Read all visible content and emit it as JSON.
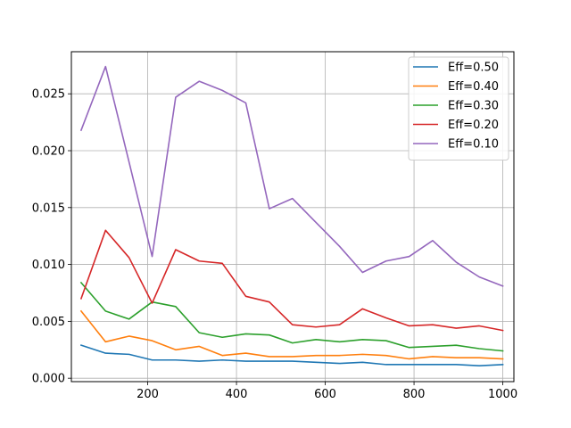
{
  "chart_data": {
    "type": "line",
    "title": "",
    "xlabel": "",
    "ylabel": "",
    "xlim": [
      28,
      1025
    ],
    "ylim": [
      -0.0003,
      0.0287
    ],
    "x_ticks": [
      200,
      400,
      600,
      800,
      1000
    ],
    "y_ticks": [
      0.0,
      0.005,
      0.01,
      0.015,
      0.02,
      0.025
    ],
    "x_tick_labels": [
      "200",
      "400",
      "600",
      "800",
      "1000"
    ],
    "y_tick_labels": [
      "0.000",
      "0.005",
      "0.010",
      "0.015",
      "0.020",
      "0.025"
    ],
    "grid": true,
    "legend_position": "top-right",
    "x": [
      50,
      105,
      158,
      210,
      263,
      316,
      368,
      421,
      474,
      526,
      579,
      632,
      684,
      737,
      789,
      842,
      895,
      947,
      1000
    ],
    "series": [
      {
        "name": "Eff=0.50",
        "color": "#1f77b4",
        "values": [
          0.0029,
          0.0022,
          0.0021,
          0.0016,
          0.0016,
          0.0015,
          0.0016,
          0.0015,
          0.0015,
          0.0015,
          0.0014,
          0.0013,
          0.0014,
          0.0012,
          0.0012,
          0.0012,
          0.0012,
          0.0011,
          0.0012
        ]
      },
      {
        "name": "Eff=0.40",
        "color": "#ff7f0e",
        "values": [
          0.0059,
          0.0032,
          0.0037,
          0.0033,
          0.0025,
          0.0028,
          0.002,
          0.0022,
          0.0019,
          0.0019,
          0.002,
          0.002,
          0.0021,
          0.002,
          0.0017,
          0.0019,
          0.0018,
          0.0018,
          0.0017
        ]
      },
      {
        "name": "Eff=0.30",
        "color": "#2ca02c",
        "values": [
          0.0084,
          0.0059,
          0.0052,
          0.0067,
          0.0063,
          0.004,
          0.0036,
          0.0039,
          0.0038,
          0.0031,
          0.0034,
          0.0032,
          0.0034,
          0.0033,
          0.0027,
          0.0028,
          0.0029,
          0.0026,
          0.0024
        ]
      },
      {
        "name": "Eff=0.20",
        "color": "#d62728",
        "values": [
          0.007,
          0.013,
          0.0106,
          0.0066,
          0.0113,
          0.0103,
          0.0101,
          0.0072,
          0.0067,
          0.0047,
          0.0045,
          0.0047,
          0.0061,
          0.0053,
          0.0046,
          0.0047,
          0.0044,
          0.0046,
          0.0042
        ]
      },
      {
        "name": "Eff=0.10",
        "color": "#9467bd",
        "values": [
          0.0218,
          0.0274,
          0.019,
          0.0107,
          0.0247,
          0.0261,
          0.0253,
          0.0242,
          0.0149,
          0.0158,
          0.0137,
          0.0116,
          0.0093,
          0.0103,
          0.0107,
          0.0121,
          0.0102,
          0.0089,
          0.0081
        ]
      }
    ]
  }
}
